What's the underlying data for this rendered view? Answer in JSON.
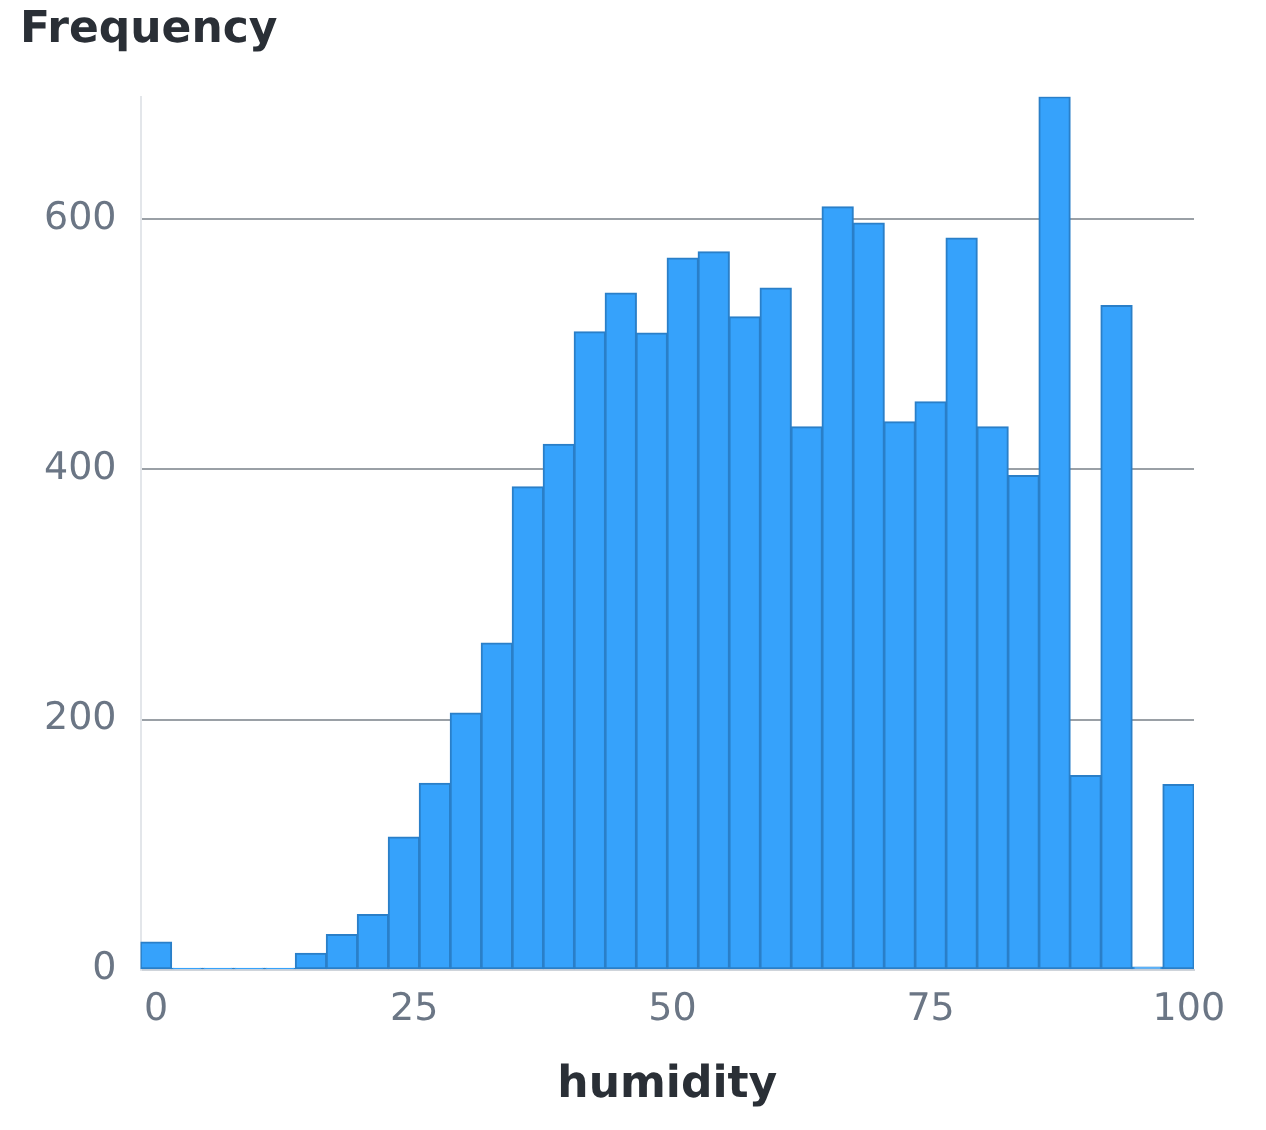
{
  "chart_data": {
    "type": "histogram",
    "title": "Frequency",
    "xlabel": "humidity",
    "bins": [
      -1.5,
      1.5,
      4.5,
      7.5,
      10.5,
      13.5,
      16.5,
      19.5,
      22.5,
      25.5,
      28.5,
      31.5,
      34.5,
      37.5,
      40.5,
      43.5,
      46.5,
      49.5,
      52.5,
      55.5,
      58.5,
      61.5,
      64.5,
      67.5,
      70.5,
      73.5,
      76.5,
      79.5,
      82.5,
      85.5,
      88.5,
      91.5,
      94.5,
      97.5,
      100.5
    ],
    "values": [
      22,
      1,
      1,
      1,
      1,
      13,
      28,
      44,
      106,
      149,
      205,
      261,
      386,
      420,
      510,
      541,
      509,
      569,
      574,
      522,
      545,
      434,
      610,
      597,
      438,
      454,
      585,
      434,
      395,
      698,
      155,
      531,
      2,
      148
    ],
    "color": "#36a2fb",
    "xlim": [
      -1.5,
      100.5
    ],
    "xticks": [
      0,
      25,
      50,
      75,
      100
    ],
    "ylim": [
      0,
      698
    ],
    "yticks": [
      0,
      200,
      400,
      600
    ],
    "grid": "y",
    "legend": false
  }
}
